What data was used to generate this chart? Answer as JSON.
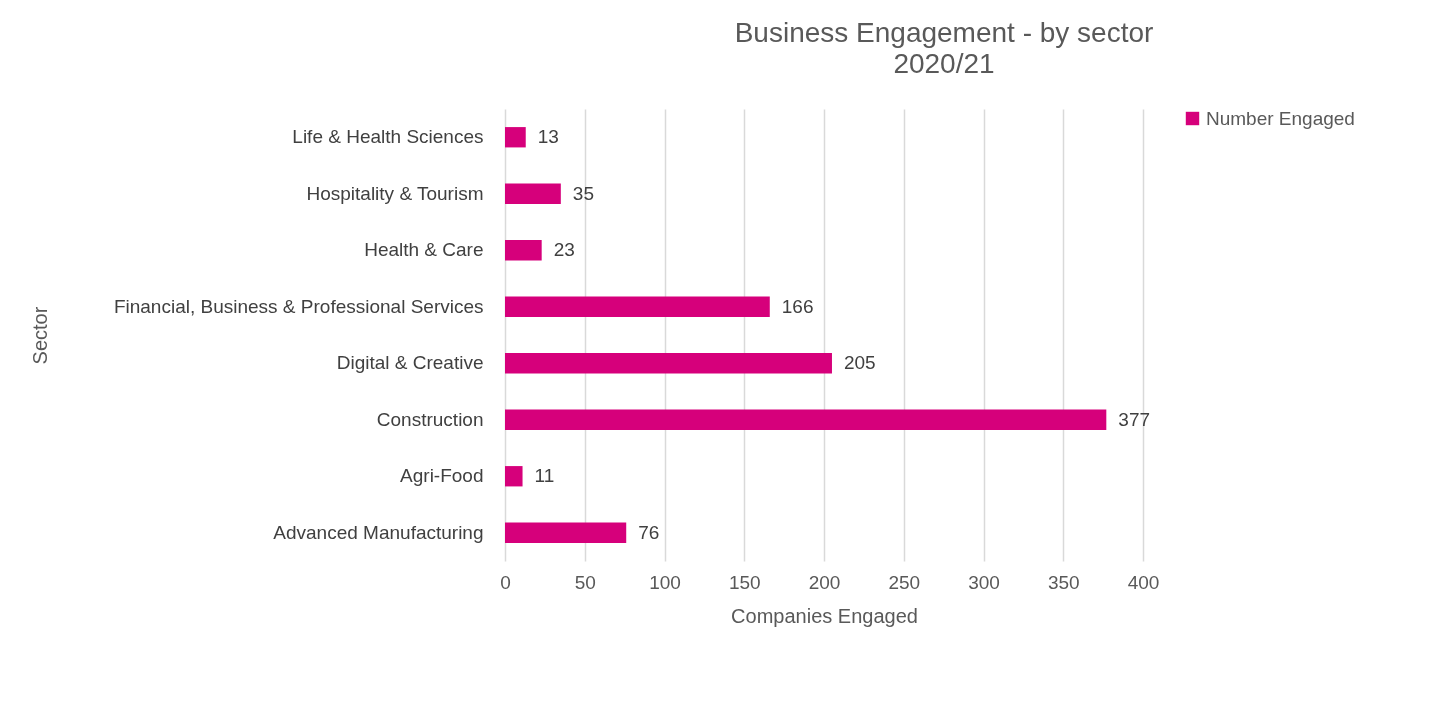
{
  "chart_data": {
    "type": "bar",
    "orientation": "horizontal",
    "title": "Business Engagement - by sector",
    "subtitle": "2020/21",
    "xlabel": "Companies Engaged",
    "ylabel": "Sector",
    "categories": [
      "Life & Health Sciences",
      "Hospitality & Tourism",
      "Health & Care",
      "Financial, Business & Professional Services",
      "Digital & Creative",
      "Construction",
      "Agri-Food",
      "Advanced Manufacturing"
    ],
    "series": [
      {
        "name": "Number Engaged",
        "color": "#d6007b",
        "values": [
          13,
          35,
          23,
          166,
          205,
          377,
          11,
          76
        ]
      }
    ],
    "xlim": [
      0,
      400
    ],
    "xticks": [
      0,
      50,
      100,
      150,
      200,
      250,
      300,
      350,
      400
    ],
    "grid": "x",
    "legend": "right",
    "data_labels": true
  }
}
